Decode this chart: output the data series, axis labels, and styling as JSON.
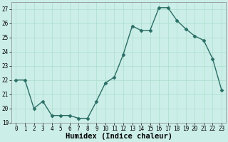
{
  "x": [
    0,
    1,
    2,
    3,
    4,
    5,
    6,
    7,
    8,
    9,
    10,
    11,
    12,
    13,
    14,
    15,
    16,
    17,
    18,
    19,
    20,
    21,
    22,
    23
  ],
  "y": [
    22,
    22,
    20,
    20.5,
    19.5,
    19.5,
    19.5,
    19.3,
    19.3,
    20.5,
    21.8,
    22.2,
    23.8,
    25.8,
    25.5,
    25.5,
    27.1,
    27.1,
    26.2,
    25.6,
    25.1,
    24.8,
    23.5,
    21.3
  ],
  "xlabel": "Humidex (Indice chaleur)",
  "line_color": "#2a6e65",
  "marker": "D",
  "marker_size": 2.5,
  "bg_color": "#cceee8",
  "grid_color": "#aaddcc",
  "ylim": [
    19,
    27.5
  ],
  "xlim": [
    -0.5,
    23.5
  ],
  "yticks": [
    19,
    20,
    21,
    22,
    23,
    24,
    25,
    26,
    27
  ],
  "xticks": [
    0,
    1,
    2,
    3,
    4,
    5,
    6,
    7,
    8,
    9,
    10,
    11,
    12,
    13,
    14,
    15,
    16,
    17,
    18,
    19,
    20,
    21,
    22,
    23
  ],
  "tick_fontsize": 5.5,
  "label_fontsize": 7.5,
  "linewidth": 1.0
}
